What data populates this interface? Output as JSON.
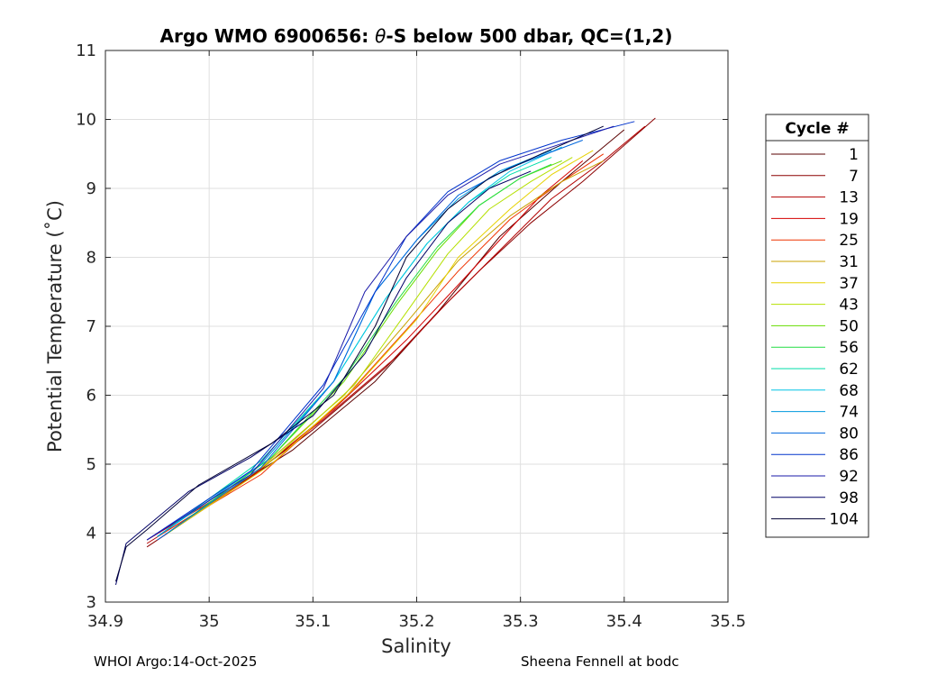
{
  "chart_data": {
    "type": "line",
    "title_prefix": "Argo WMO 6900656: ",
    "title_theta": "θ",
    "title_suffix": "-S below 500 dbar,  QC=(1,2)",
    "xlabel": "Salinity",
    "ylabel": "Potential Temperature (˚C)",
    "xlim": [
      34.9,
      35.5
    ],
    "ylim": [
      3,
      11
    ],
    "xticks": [
      "34.9",
      "35",
      "35.1",
      "35.2",
      "35.3",
      "35.4",
      "35.5"
    ],
    "yticks": [
      "3",
      "4",
      "5",
      "6",
      "7",
      "8",
      "9",
      "10",
      "11"
    ],
    "grid": true,
    "legend_title": "Cycle #",
    "legend_placement": "right-outside",
    "series": [
      {
        "name": "1",
        "color": "#5a0000",
        "x": [
          34.99,
          35.08,
          35.16,
          35.22,
          35.28,
          35.34,
          35.4
        ],
        "y": [
          4.35,
          5.2,
          6.2,
          7.2,
          8.3,
          9.1,
          9.85
        ]
      },
      {
        "name": "7",
        "color": "#8b0000",
        "x": [
          34.94,
          35.02,
          35.1,
          35.17,
          35.22,
          35.26,
          35.31,
          35.36,
          35.43
        ],
        "y": [
          3.8,
          4.6,
          5.5,
          6.4,
          7.2,
          7.8,
          8.5,
          9.1,
          10.02
        ]
      },
      {
        "name": "13",
        "color": "#b30000",
        "x": [
          34.94,
          35.03,
          35.11,
          35.18,
          35.23,
          35.28,
          35.33,
          35.38,
          35.42
        ],
        "y": [
          3.85,
          4.7,
          5.65,
          6.55,
          7.35,
          8.1,
          8.85,
          9.4,
          9.9
        ]
      },
      {
        "name": "19",
        "color": "#d40000",
        "x": [
          34.94,
          35.04,
          35.12,
          35.19,
          35.24,
          35.28,
          35.32,
          35.36
        ],
        "y": [
          3.9,
          4.8,
          5.8,
          6.8,
          7.6,
          8.25,
          8.9,
          9.4
        ]
      },
      {
        "name": "25",
        "color": "#ee3300",
        "x": [
          34.95,
          35.05,
          35.13,
          35.19,
          35.24,
          35.29,
          35.34,
          35.38
        ],
        "y": [
          3.95,
          4.85,
          5.95,
          6.95,
          7.8,
          8.55,
          9.1,
          9.5
        ]
      },
      {
        "name": "31",
        "color": "#c8a000",
        "x": [
          34.96,
          35.05,
          35.13,
          35.19,
          35.24,
          35.29,
          35.34,
          35.38
        ],
        "y": [
          4.0,
          4.95,
          6.0,
          7.05,
          7.95,
          8.6,
          9.1,
          9.4
        ]
      },
      {
        "name": "37",
        "color": "#e6d200",
        "x": [
          34.96,
          35.06,
          35.14,
          35.2,
          35.24,
          35.29,
          35.33,
          35.37
        ],
        "y": [
          4.0,
          5.0,
          6.1,
          7.1,
          8.0,
          8.7,
          9.2,
          9.55
        ]
      },
      {
        "name": "43",
        "color": "#b4e000",
        "x": [
          34.96,
          35.06,
          35.14,
          35.19,
          35.23,
          35.27,
          35.31,
          35.35
        ],
        "y": [
          4.0,
          5.05,
          6.15,
          7.2,
          8.05,
          8.7,
          9.1,
          9.45
        ]
      },
      {
        "name": "50",
        "color": "#66dd00",
        "x": [
          34.96,
          35.06,
          35.13,
          35.18,
          35.22,
          35.26,
          35.3,
          35.34
        ],
        "y": [
          4.0,
          5.1,
          6.2,
          7.3,
          8.1,
          8.75,
          9.15,
          9.4
        ]
      },
      {
        "name": "56",
        "color": "#22dd44",
        "x": [
          34.96,
          35.06,
          35.13,
          35.18,
          35.22,
          35.26,
          35.3,
          35.33
        ],
        "y": [
          4.0,
          5.1,
          6.25,
          7.35,
          8.15,
          8.75,
          9.15,
          9.35
        ]
      },
      {
        "name": "62",
        "color": "#00ddaa",
        "x": [
          34.95,
          35.05,
          35.12,
          35.17,
          35.21,
          35.25,
          35.29,
          35.33
        ],
        "y": [
          3.95,
          5.05,
          6.2,
          7.4,
          8.2,
          8.8,
          9.2,
          9.45
        ]
      },
      {
        "name": "68",
        "color": "#00c4e6",
        "x": [
          34.95,
          35.05,
          35.12,
          35.17,
          35.21,
          35.25,
          35.29,
          35.34
        ],
        "y": [
          3.95,
          5.0,
          6.2,
          7.4,
          8.2,
          8.8,
          9.25,
          9.6
        ]
      },
      {
        "name": "74",
        "color": "#0099dd",
        "x": [
          34.95,
          35.05,
          35.12,
          35.16,
          35.2,
          35.24,
          35.28,
          35.33
        ],
        "y": [
          3.95,
          5.0,
          6.2,
          7.5,
          8.25,
          8.85,
          9.25,
          9.55
        ]
      },
      {
        "name": "80",
        "color": "#0066dd",
        "x": [
          34.95,
          35.05,
          35.12,
          35.16,
          35.2,
          35.24,
          35.29,
          35.36
        ],
        "y": [
          3.9,
          4.95,
          6.2,
          7.5,
          8.25,
          8.9,
          9.3,
          9.7
        ]
      },
      {
        "name": "86",
        "color": "#0033cc",
        "x": [
          34.94,
          35.04,
          35.11,
          35.16,
          35.19,
          35.23,
          35.28,
          35.34,
          35.41
        ],
        "y": [
          3.9,
          4.9,
          6.15,
          7.5,
          8.3,
          8.95,
          9.4,
          9.7,
          9.97
        ]
      },
      {
        "name": "92",
        "color": "#1a1aaa",
        "x": [
          34.94,
          35.04,
          35.11,
          35.15,
          35.19,
          35.23,
          35.28,
          35.34,
          35.39
        ],
        "y": [
          3.9,
          4.85,
          6.1,
          7.5,
          8.3,
          8.9,
          9.35,
          9.65,
          9.9
        ]
      },
      {
        "name": "98",
        "color": "#000066",
        "x": [
          34.91,
          34.92,
          34.94,
          34.98,
          35.04,
          35.1,
          35.15,
          35.19,
          35.23,
          35.27,
          35.31
        ],
        "y": [
          3.25,
          3.85,
          4.1,
          4.6,
          5.1,
          5.7,
          6.6,
          7.7,
          8.5,
          9.0,
          9.25
        ]
      },
      {
        "name": "104",
        "color": "#000033",
        "x": [
          34.91,
          34.92,
          34.94,
          34.99,
          35.06,
          35.12,
          35.16,
          35.19,
          35.23,
          35.27,
          35.32,
          35.38
        ],
        "y": [
          3.3,
          3.8,
          4.05,
          4.7,
          5.3,
          6.0,
          7.0,
          8.0,
          8.7,
          9.15,
          9.5,
          9.9
        ]
      }
    ]
  },
  "footer": {
    "left": "WHOI Argo:14-Oct-2025",
    "right": "Sheena Fennell at bodc"
  }
}
